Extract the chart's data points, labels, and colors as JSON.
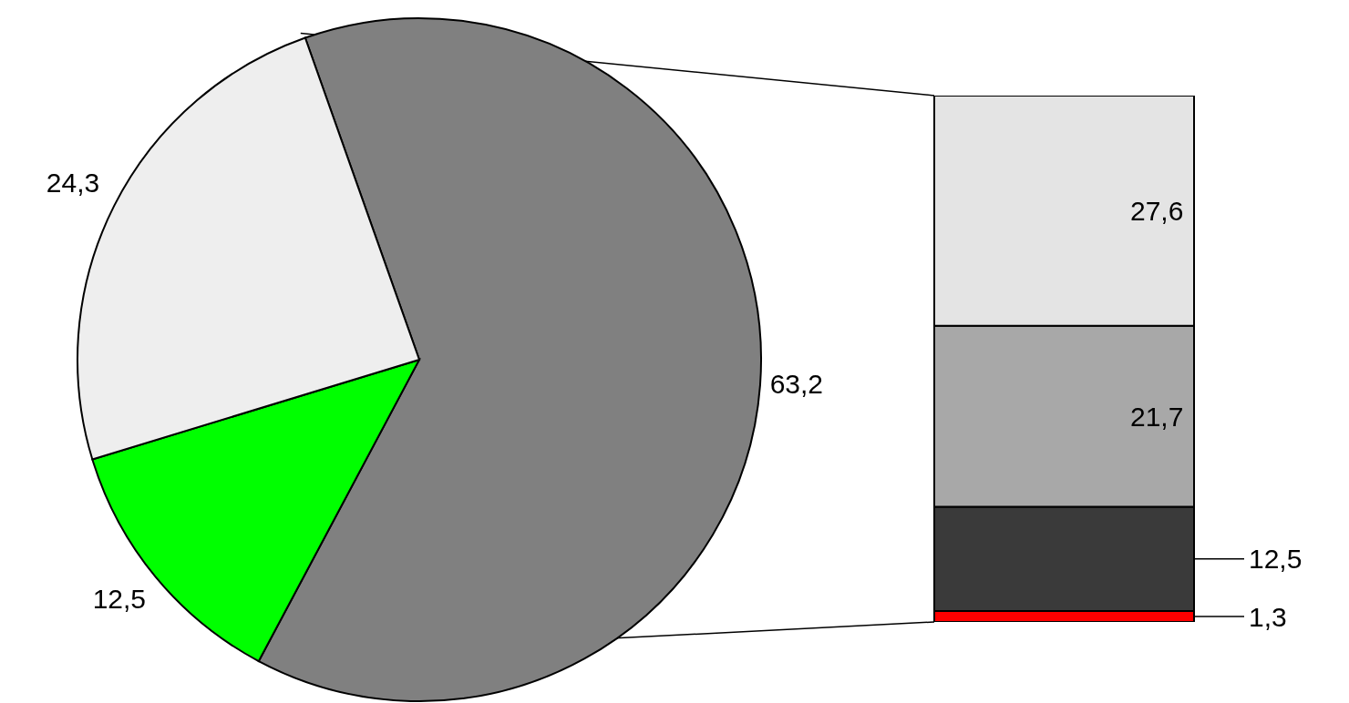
{
  "chart_data": [
    {
      "type": "pie",
      "categories": [
        null,
        null,
        null
      ],
      "values": [
        63.2,
        12.5,
        24.3
      ],
      "colors": [
        "#808080",
        "#00ff00",
        "#eeeeee"
      ],
      "value_labels": [
        "63,2",
        "12,5",
        "24,3"
      ]
    },
    {
      "type": "bar",
      "stacked": true,
      "categories": [
        null
      ],
      "series": [
        {
          "color": "#ff0000",
          "values": [
            1.3
          ],
          "value_labels": [
            "1,3"
          ]
        },
        {
          "color": "#3a3a3a",
          "values": [
            12.5
          ],
          "value_labels": [
            "12,5"
          ]
        },
        {
          "color": "#a8a8a8",
          "values": [
            21.7
          ],
          "value_labels": [
            "21,7"
          ]
        },
        {
          "color": "#e4e4e4",
          "values": [
            27.6
          ],
          "value_labels": [
            "27,6"
          ]
        }
      ]
    }
  ]
}
